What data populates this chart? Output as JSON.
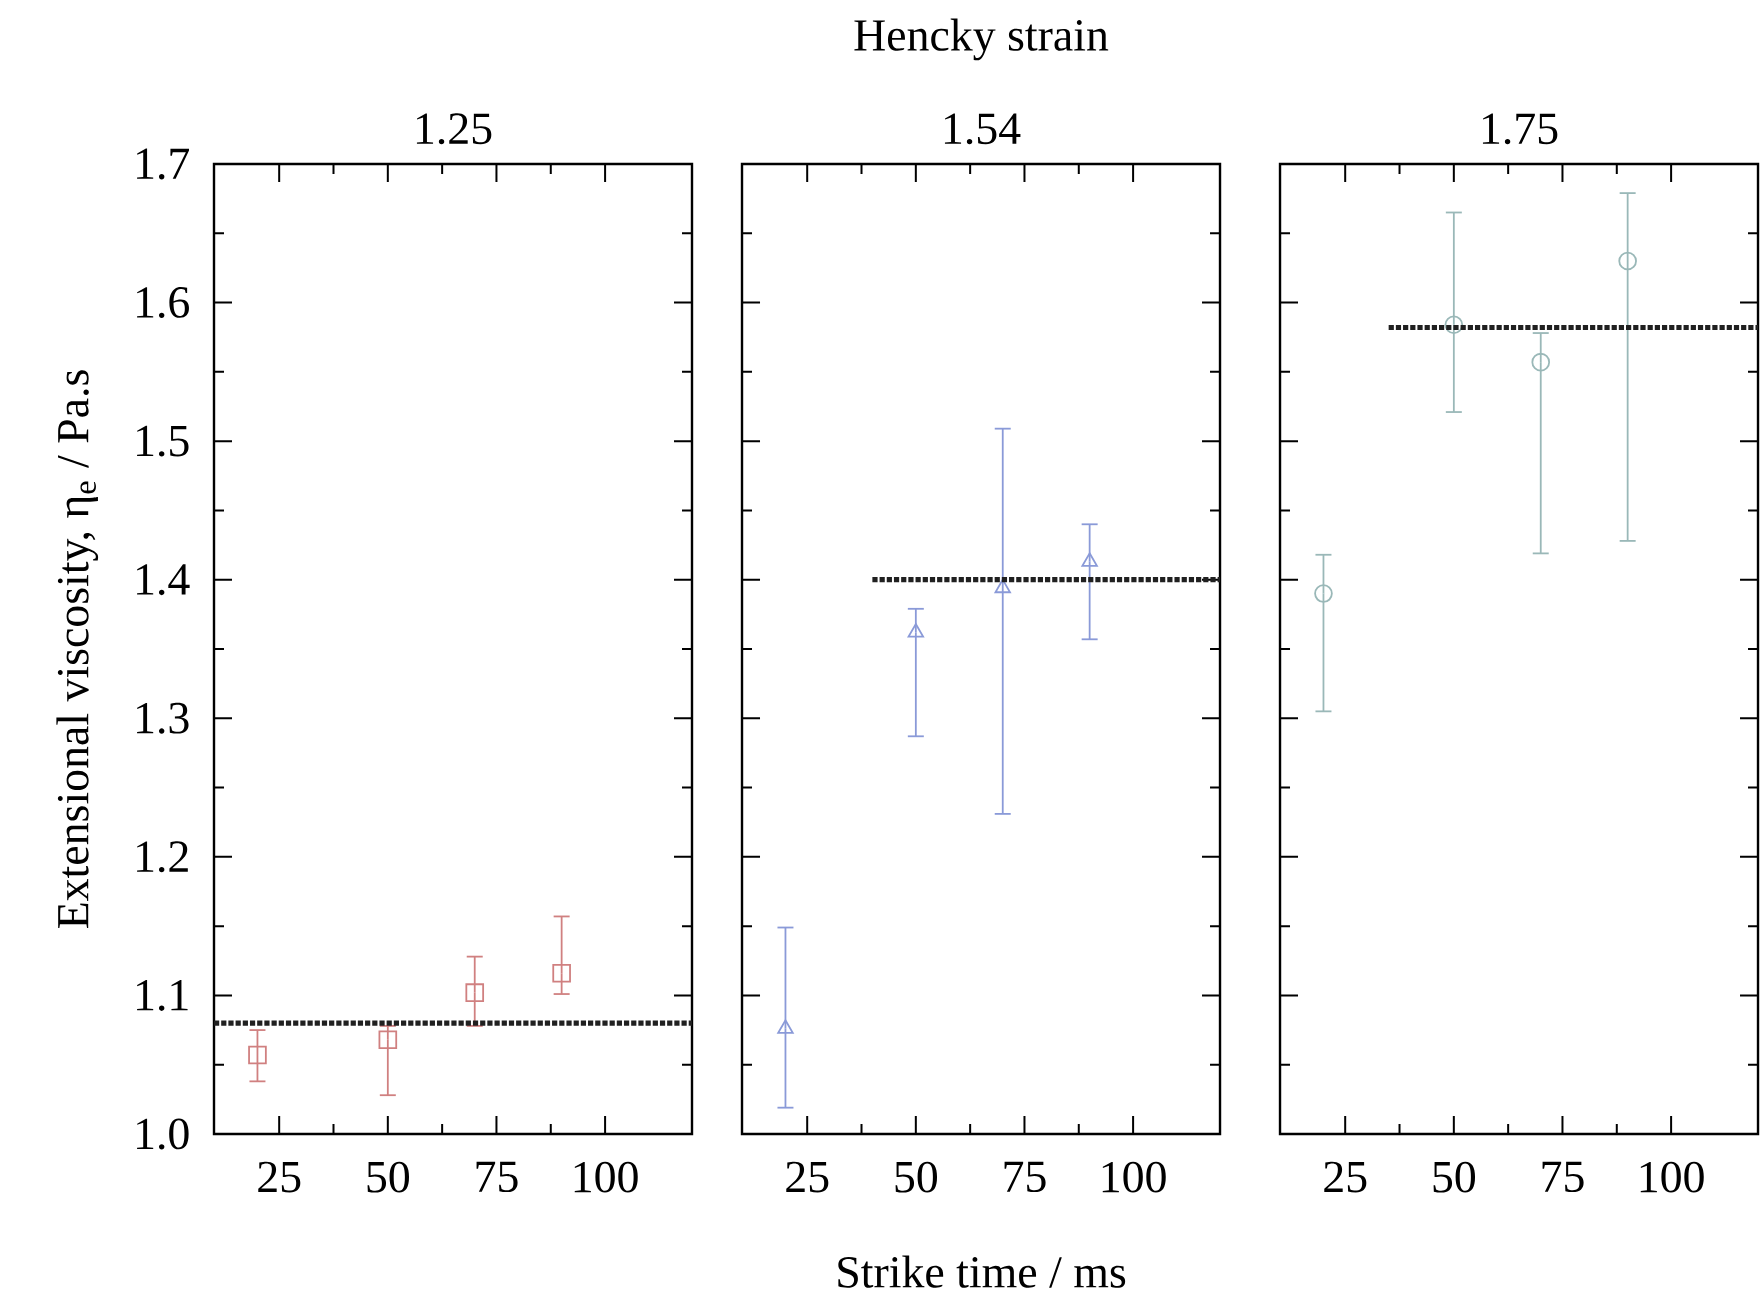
{
  "chart_data": [
    {
      "type": "scatter",
      "title": "1.25",
      "ylabel": "Extensional viscosity, η$_{e}$ / Pa.s",
      "marker": "square",
      "xlim": [
        10,
        120
      ],
      "xticks": [
        25,
        50,
        75,
        100
      ],
      "ylim": [
        1.0,
        1.7
      ],
      "yticks": [
        {
          "value": 1.0,
          "label": "1.0"
        },
        1.1,
        1.2,
        1.3,
        1.4,
        1.5,
        1.6,
        1.7
      ],
      "series": [
        {
          "color": "#d08080",
          "x": [
            20,
            50,
            70,
            90
          ],
          "values": [
            1.057,
            1.068,
            1.102,
            1.116
          ],
          "errors": [
            [
              1.038,
              1.075
            ],
            [
              1.028,
              1.078
            ],
            [
              1.078,
              1.128
            ],
            [
              1.101,
              1.157
            ]
          ]
        },
        {
          "type": "line",
          "color": "#202020",
          "line_style": "dotted",
          "marker": "none",
          "x": [
            10,
            120
          ],
          "values": [
            1.08,
            1.08
          ]
        }
      ]
    },
    {
      "type": "scatter",
      "title": "1.54",
      "xlabel": "Strike time  / ms",
      "annotations": [
        "Hencky strain"
      ],
      "marker": "triangle",
      "tick_labels": "x",
      "xlim": [
        10,
        120
      ],
      "xticks": [
        25,
        50,
        75,
        100
      ],
      "ylim": [
        1.0,
        1.7
      ],
      "yticks": [
        1.0,
        1.1,
        1.2,
        1.3,
        1.4,
        1.5,
        1.6,
        1.7
      ],
      "series": [
        {
          "color": "#8a9ad8",
          "x": [
            20,
            50,
            70,
            90
          ],
          "values": [
            1.076,
            1.362,
            1.394,
            1.413
          ],
          "errors": [
            [
              1.019,
              1.149
            ],
            [
              1.287,
              1.379
            ],
            [
              1.231,
              1.509
            ],
            [
              1.357,
              1.44
            ]
          ]
        },
        {
          "type": "line",
          "color": "#202020",
          "line_style": "dotted",
          "marker": "none",
          "x": [
            40,
            120
          ],
          "values": [
            1.4,
            1.4
          ]
        }
      ]
    },
    {
      "type": "scatter",
      "title": "1.75",
      "marker": "circle",
      "tick_labels": "x",
      "xlim": [
        10,
        120
      ],
      "xticks": [
        25,
        50,
        75,
        100
      ],
      "ylim": [
        1.0,
        1.7
      ],
      "yticks": [
        1.0,
        1.1,
        1.2,
        1.3,
        1.4,
        1.5,
        1.6,
        1.7
      ],
      "series": [
        {
          "color": "#9ab8b8",
          "x": [
            20,
            50,
            70,
            90
          ],
          "values": [
            1.39,
            1.584,
            1.557,
            1.63
          ],
          "errors": [
            [
              1.305,
              1.418
            ],
            [
              1.521,
              1.665
            ],
            [
              1.419,
              1.578
            ],
            [
              1.428,
              1.679
            ]
          ]
        },
        {
          "type": "line",
          "color": "#202020",
          "line_style": "dotted",
          "marker": "none",
          "x": [
            35,
            120
          ],
          "values": [
            1.582,
            1.582
          ]
        }
      ]
    }
  ]
}
